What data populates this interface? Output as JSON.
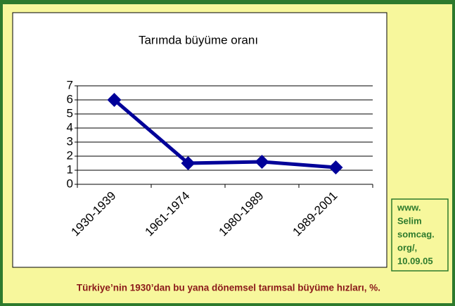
{
  "chart_data": {
    "type": "line",
    "title": "Tarımda büyüme oranı",
    "categories": [
      "1930-1939",
      "1961-1974",
      "1980-1989",
      "1989-2001"
    ],
    "values": [
      6,
      1.5,
      1.6,
      1.2
    ],
    "color": "#000099",
    "ylim": [
      0,
      7
    ],
    "yticks": [
      0,
      1,
      2,
      3,
      4,
      5,
      6,
      7
    ],
    "grid": true,
    "source_lines": [
      "www.",
      "Selim",
      "somcag.",
      "org/,",
      "10.09.05"
    ],
    "caption": "Türkiye’nin 1930’dan bu yana dönemsel tarımsal büyüme hızları, %."
  }
}
